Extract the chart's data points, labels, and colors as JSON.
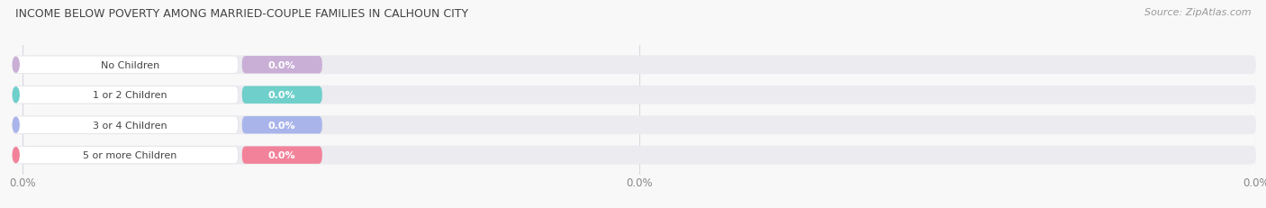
{
  "title": "INCOME BELOW POVERTY AMONG MARRIED-COUPLE FAMILIES IN CALHOUN CITY",
  "source": "Source: ZipAtlas.com",
  "categories": [
    "No Children",
    "1 or 2 Children",
    "3 or 4 Children",
    "5 or more Children"
  ],
  "values": [
    0.0,
    0.0,
    0.0,
    0.0
  ],
  "bar_colors": [
    "#c9aed6",
    "#6fcfca",
    "#a9b5ea",
    "#f2829a"
  ],
  "bar_bg_color": "#ebebf0",
  "value_label_color": "#ffffff",
  "category_label_color": "#444444",
  "title_color": "#444444",
  "source_color": "#999999",
  "bar_height": 0.62,
  "fig_width": 14.06,
  "fig_height": 2.32,
  "background_color": "#f8f8f8",
  "tick_label_color": "#888888",
  "grid_color": "#d8d8e0",
  "n_xticks": 3,
  "xtick_labels": [
    "0.0%",
    "0.0%",
    "0.0%"
  ]
}
